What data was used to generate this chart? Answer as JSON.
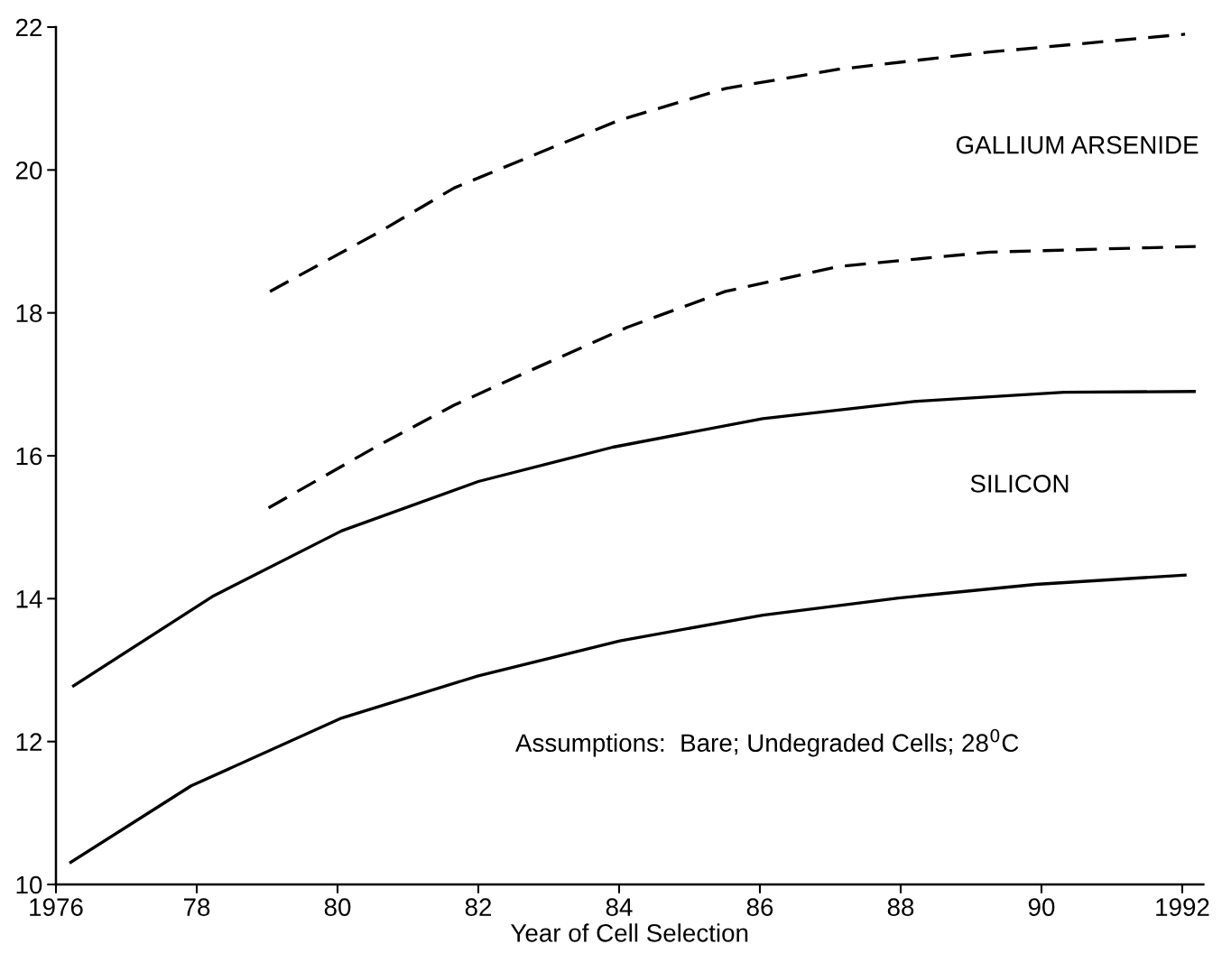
{
  "chart_data": {
    "type": "line",
    "xlabel": "Year of Cell Selection",
    "xlim": [
      1976,
      1992.3
    ],
    "ylim": [
      10,
      22
    ],
    "xticks": [
      1976,
      {
        "value": 1978,
        "label": "78"
      },
      {
        "value": 1980,
        "label": "80"
      },
      {
        "value": 1982,
        "label": "82"
      },
      {
        "value": 1984,
        "label": "84"
      },
      {
        "value": 1986,
        "label": "86"
      },
      {
        "value": 1988,
        "label": "88"
      },
      {
        "value": 1990,
        "label": "90"
      },
      1992
    ],
    "yticks": [
      10,
      12,
      14,
      16,
      18,
      20,
      22
    ],
    "grid": false,
    "legend": false,
    "marker": "none",
    "series": [
      {
        "color": "#000000",
        "line_style": "dashed",
        "x": [
          1979.04,
          1980.59,
          1981.66,
          1982.89,
          1984.01,
          1985.51,
          1987.12,
          1989.26,
          1992.04
        ],
        "values": [
          18.3,
          19.13,
          19.75,
          20.25,
          20.7,
          21.14,
          21.41,
          21.65,
          21.9
        ]
      },
      {
        "color": "#000000",
        "line_style": "dashed",
        "x": [
          1979.02,
          1980.59,
          1981.66,
          1982.73,
          1984.12,
          1985.51,
          1987.12,
          1989.26,
          1992.19
        ],
        "values": [
          15.27,
          16.15,
          16.71,
          17.19,
          17.8,
          18.3,
          18.65,
          18.85,
          18.93
        ]
      },
      {
        "color": "#000000",
        "line_style": "solid",
        "x": [
          1976.25,
          1978.24,
          1980.06,
          1982.0,
          1983.91,
          1986.04,
          1988.19,
          1990.32,
          1992.17
        ],
        "values": [
          12.78,
          14.04,
          14.95,
          15.64,
          16.12,
          16.52,
          16.76,
          16.89,
          16.9
        ]
      },
      {
        "color": "#000000",
        "line_style": "solid",
        "x": [
          1976.21,
          1977.92,
          1980.06,
          1982.0,
          1984.01,
          1986.04,
          1987.97,
          1989.92,
          1992.04
        ],
        "values": [
          10.31,
          11.38,
          12.33,
          12.92,
          13.41,
          13.77,
          14.01,
          14.2,
          14.33
        ]
      }
    ],
    "annotations": [
      "GALLIUM ARSENIDE",
      "SILICON",
      "Assumptions:  Bare; Undegraded Cells; 28$^{0}$C"
    ]
  }
}
